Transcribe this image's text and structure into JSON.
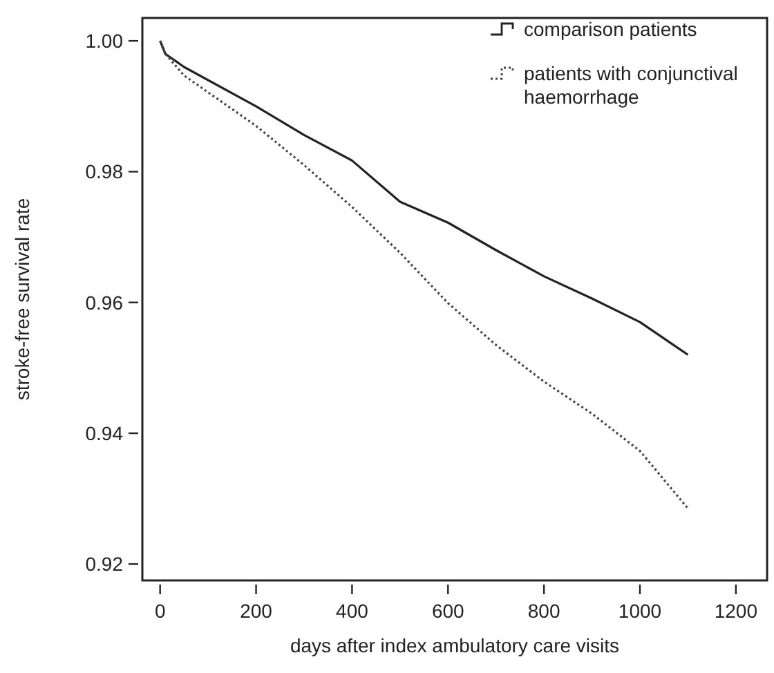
{
  "chart_data": {
    "type": "line",
    "xlabel": "days after index ambulatory care visits",
    "ylabel": "stroke-free survival rate",
    "xlim": [
      -37,
      1265
    ],
    "ylim": [
      0.9175,
      1.0035
    ],
    "xticks": [
      0,
      200,
      400,
      600,
      800,
      1000,
      1200
    ],
    "yticks": [
      {
        "value": 0.92,
        "label": "0.92"
      },
      {
        "value": 0.94,
        "label": "0.94"
      },
      {
        "value": 0.96,
        "label": "0.96"
      },
      {
        "value": 0.98,
        "label": "0.98"
      },
      {
        "value": 1.0,
        "label": "1.00"
      }
    ],
    "grid": false,
    "legend": "top right",
    "series": [
      {
        "name": "comparison patients",
        "color": "#222222",
        "line_style": "solid",
        "x": [
          0,
          11,
          50,
          200,
          300,
          400,
          500,
          600,
          700,
          800,
          900,
          1000,
          1100
        ],
        "values": [
          1.0,
          0.998,
          0.996,
          0.99,
          0.9856,
          0.9817,
          0.9754,
          0.9722,
          0.968,
          0.964,
          0.9606,
          0.957,
          0.952
        ]
      },
      {
        "name": "patients with conjunctival haemorrhage",
        "color": "#444444",
        "line_style": "dotted",
        "x": [
          0,
          11,
          50,
          200,
          300,
          400,
          500,
          600,
          700,
          800,
          900,
          1000,
          1100
        ],
        "values": [
          1.0,
          0.998,
          0.9947,
          0.987,
          0.981,
          0.9746,
          0.9676,
          0.9599,
          0.9535,
          0.9479,
          0.943,
          0.9373,
          0.9285
        ]
      }
    ]
  }
}
